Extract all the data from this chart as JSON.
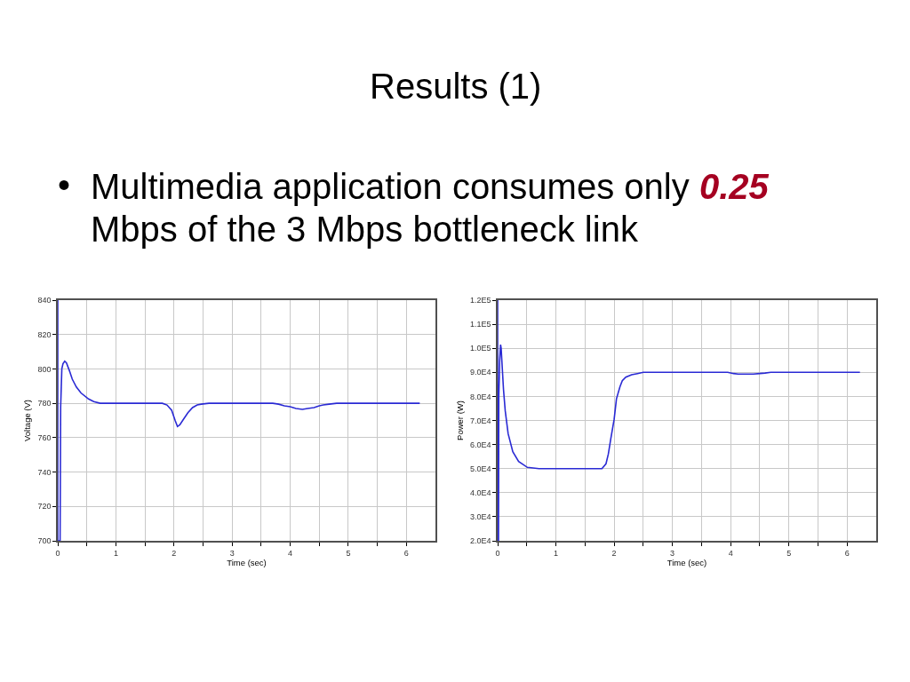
{
  "chart_data": [
    {
      "type": "other",
      "title": "Results (1)",
      "annotations": [
        "•",
        "Multimedia application consumes only",
        "0.25",
        "Mbps of the 3 Mbps bottleneck link"
      ]
    },
    {
      "type": "line",
      "xlabel": "Time (sec)",
      "ylabel": "Voltage (V)",
      "color": "#2a2ad4",
      "x": [
        0,
        0,
        0.04,
        0.05,
        0.07,
        0.09,
        0.12,
        0.15,
        0.2,
        0.25,
        0.32,
        0.4,
        0.53,
        0.62,
        0.73,
        1.0,
        1.5,
        1.8,
        1.88,
        1.96,
        2.02,
        2.06,
        2.1,
        2.16,
        2.24,
        2.32,
        2.4,
        2.47,
        2.6,
        2.88,
        3.2,
        3.54,
        3.7,
        3.8,
        3.9,
        4.0,
        4.1,
        4.21,
        4.3,
        4.41,
        4.5,
        4.57,
        4.67,
        4.8,
        5.08,
        5.5,
        6.23
      ],
      "values": [
        840,
        700,
        700,
        778,
        800,
        803,
        804.5,
        803.5,
        799,
        794,
        789.5,
        786,
        782.5,
        781,
        780,
        780,
        780,
        780,
        779,
        776,
        770,
        766.5,
        767.5,
        770.5,
        774.5,
        777.5,
        779,
        779.5,
        780,
        780,
        780,
        780,
        780,
        779.5,
        778.5,
        778,
        777,
        776.5,
        777,
        777.5,
        778.5,
        779,
        779.5,
        780,
        780,
        780,
        780
      ],
      "xlim": [
        0,
        6.5
      ],
      "ylim": [
        700,
        840
      ],
      "xticks": [
        0,
        {
          "value": 0.5,
          "label": null
        },
        1,
        {
          "value": 1.5,
          "label": null
        },
        2,
        {
          "value": 2.5,
          "label": null
        },
        3,
        {
          "value": 3.5,
          "label": null
        },
        4,
        {
          "value": 4.5,
          "label": null
        },
        5,
        {
          "value": 5.5,
          "label": null
        },
        6
      ],
      "yticks": [
        700,
        720,
        740,
        760,
        780,
        800,
        820,
        840
      ],
      "grid": true
    },
    {
      "type": "line",
      "xlabel": "Time (sec)",
      "ylabel": "Power (W)",
      "color": "#2a2ad4",
      "x": [
        0,
        0,
        0.015,
        0.02,
        0.035,
        0.05,
        0.06,
        0.08,
        0.1,
        0.13,
        0.18,
        0.26,
        0.36,
        0.51,
        0.71,
        1.0,
        1.5,
        1.79,
        1.86,
        1.9,
        1.94,
        2.0,
        2.04,
        2.1,
        2.14,
        2.2,
        2.3,
        2.4,
        2.5,
        3.0,
        3.5,
        3.95,
        4.05,
        4.13,
        4.39,
        4.5,
        4.59,
        4.69,
        5.0,
        6.22
      ],
      "values": [
        120000,
        20000,
        20000,
        80000,
        95000,
        101500,
        100000,
        91500,
        83000,
        74000,
        64500,
        57000,
        53000,
        50500,
        50000,
        50000,
        50000,
        50000,
        52000,
        56000,
        62000,
        70500,
        79000,
        84000,
        86500,
        88000,
        89000,
        89500,
        90000,
        90000,
        90000,
        90000,
        89500,
        89300,
        89300,
        89500,
        89700,
        90000,
        90000,
        90000
      ],
      "xlim": [
        0,
        6.5
      ],
      "ylim": [
        20000,
        120000
      ],
      "xticks": [
        0,
        {
          "value": 0.5,
          "label": null
        },
        1,
        {
          "value": 1.5,
          "label": null
        },
        2,
        {
          "value": 2.5,
          "label": null
        },
        3,
        {
          "value": 3.5,
          "label": null
        },
        4,
        {
          "value": 4.5,
          "label": null
        },
        5,
        {
          "value": 5.5,
          "label": null
        },
        6
      ],
      "yticks": [
        {
          "value": 20000,
          "label": "2.0E4"
        },
        {
          "value": 30000,
          "label": "3.0E4"
        },
        {
          "value": 40000,
          "label": "4.0E4"
        },
        {
          "value": 50000,
          "label": "5.0E4"
        },
        {
          "value": 60000,
          "label": "6.0E4"
        },
        {
          "value": 70000,
          "label": "7.0E4"
        },
        {
          "value": 80000,
          "label": "8.0E4"
        },
        {
          "value": 90000,
          "label": "9.0E4"
        },
        {
          "value": 100000,
          "label": "1.0E5"
        },
        {
          "value": 110000,
          "label": "1.1E5"
        },
        {
          "value": 120000,
          "label": "1.2E5"
        }
      ],
      "grid": true
    }
  ]
}
